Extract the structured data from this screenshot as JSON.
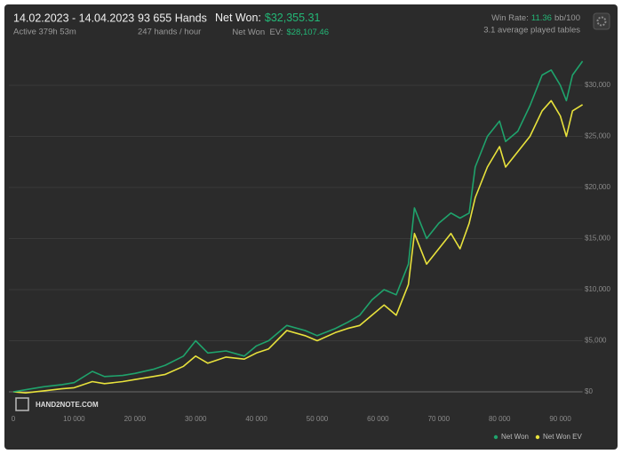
{
  "summary": {
    "period": "14.02.2023 - 14.04.2023",
    "active": "Active 379h 53m",
    "hands": "93 655 Hands",
    "rate": "247 hands / hour",
    "net_won_label": "Net Won:",
    "net_won_value": "$32,355.31",
    "ev_label": "Net Won  EV:",
    "ev_value": "$28,107.46",
    "winrate_label": "Win Rate:",
    "winrate_value": "11.36",
    "winrate_unit": "bb/100",
    "tables": "3.1 average played tables",
    "watermark": "HAND2NOTE.COM"
  },
  "chart_data": {
    "type": "line",
    "legend": "bottom-right",
    "grid": true,
    "x": [
      0,
      2000,
      5000,
      8000,
      10000,
      13000,
      15000,
      18000,
      20000,
      23000,
      25000,
      28000,
      30000,
      32000,
      35000,
      38000,
      40000,
      42000,
      45000,
      48000,
      50000,
      53000,
      55000,
      57000,
      59000,
      61000,
      63000,
      65000,
      66000,
      68000,
      70000,
      72000,
      73500,
      75000,
      76000,
      78000,
      80000,
      81000,
      83000,
      85000,
      87000,
      88500,
      90000,
      91000,
      92000,
      93655
    ],
    "series": [
      {
        "name": "Net Won",
        "color": "#1fa36c",
        "values": [
          0,
          200,
          500,
          700,
          900,
          2000,
          1500,
          1600,
          1800,
          2200,
          2600,
          3500,
          5000,
          3800,
          4000,
          3500,
          4500,
          5000,
          6500,
          6000,
          5500,
          6200,
          6800,
          7500,
          9000,
          10000,
          9500,
          12500,
          18000,
          15000,
          16500,
          17500,
          17000,
          17500,
          22000,
          25000,
          26500,
          24500,
          25500,
          28000,
          31000,
          31500,
          30000,
          28500,
          31000,
          32355.31
        ]
      },
      {
        "name": "Net Won  EV",
        "color": "#e8e23c",
        "values": [
          0,
          -100,
          100,
          300,
          400,
          1000,
          800,
          1000,
          1200,
          1500,
          1700,
          2500,
          3500,
          2800,
          3400,
          3200,
          3800,
          4200,
          6000,
          5500,
          5000,
          5800,
          6200,
          6500,
          7500,
          8500,
          7500,
          10500,
          15500,
          12500,
          14000,
          15500,
          14000,
          16500,
          19000,
          22000,
          24000,
          22000,
          23500,
          25000,
          27500,
          28500,
          27000,
          25000,
          27500,
          28107.46
        ]
      }
    ],
    "xlim": [
      0,
      93655
    ],
    "ylim": [
      -1200,
      34000
    ],
    "xticks": [
      0,
      {
        "value": 10000,
        "label": "10 000"
      },
      {
        "value": 20000,
        "label": "20 000"
      },
      {
        "value": 30000,
        "label": "30 000"
      },
      {
        "value": 40000,
        "label": "40 000"
      },
      {
        "value": 50000,
        "label": "50 000"
      },
      {
        "value": 60000,
        "label": "60 000"
      },
      {
        "value": 70000,
        "label": "70 000"
      },
      {
        "value": 80000,
        "label": "80 000"
      },
      {
        "value": 90000,
        "label": "90 000"
      }
    ],
    "yticks": [
      {
        "value": 0,
        "label": "$0"
      },
      {
        "value": 5000,
        "label": "$5,000"
      },
      {
        "value": 10000,
        "label": "$10,000"
      },
      {
        "value": 15000,
        "label": "$15,000"
      },
      {
        "value": 20000,
        "label": "$20,000"
      },
      {
        "value": 25000,
        "label": "$25,000"
      },
      {
        "value": 30000,
        "label": "$30,000"
      }
    ]
  }
}
